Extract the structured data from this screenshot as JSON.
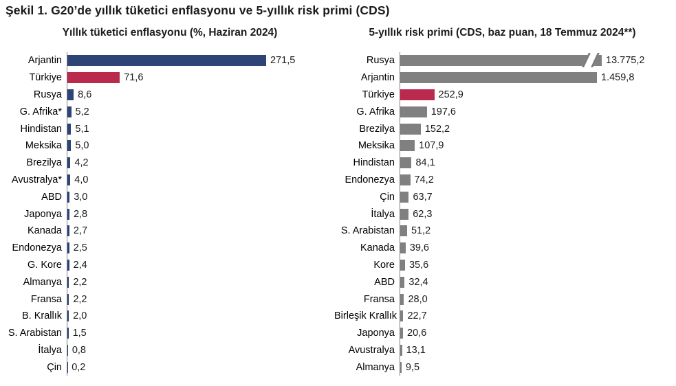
{
  "figure_title": "Şekil 1. G20’de yıllık tüketici enflasyonu ve 5-yıllık risk primi (CDS)",
  "colors": {
    "bar_blue": "#2e4476",
    "bar_red": "#b92a4c",
    "bar_gray": "#808080",
    "axis_gray": "#7f7f7f",
    "title_text": "#1a1a1a"
  },
  "chart_data": [
    {
      "type": "bar",
      "orientation": "horizontal",
      "title": "Yıllık tüketici enflasyonu (%, Haziran 2024)",
      "xlabel": "",
      "ylabel": "",
      "grid": false,
      "legend": false,
      "xlim": [
        0,
        280
      ],
      "categories": [
        "Arjantin",
        "Türkiye",
        "Rusya",
        "G. Afrika*",
        "Hindistan",
        "Meksika",
        "Brezilya",
        "Avustralya*",
        "ABD",
        "Japonya",
        "Kanada",
        "Endonezya",
        "G. Kore",
        "Almanya",
        "Fransa",
        "B. Krallık",
        "S. Arabistan",
        "İtalya",
        "Çin"
      ],
      "values": [
        271.5,
        71.6,
        8.6,
        5.2,
        5.1,
        5.0,
        4.2,
        4.0,
        3.0,
        2.8,
        2.7,
        2.5,
        2.4,
        2.2,
        2.2,
        2.0,
        1.5,
        0.8,
        0.2
      ],
      "value_labels": [
        "271,5",
        "71,6",
        "8,6",
        "5,2",
        "5,1",
        "5,0",
        "4,2",
        "4,0",
        "3,0",
        "2,8",
        "2,7",
        "2,5",
        "2,4",
        "2,2",
        "2,2",
        "2,0",
        "1,5",
        "0,8",
        "0,2"
      ],
      "default_color": "#2e4476",
      "highlight": {
        "category": "Türkiye",
        "color": "#b92a4c"
      }
    },
    {
      "type": "bar",
      "orientation": "horizontal",
      "title": "5-yıllık risk primi (CDS, baz puan, 18 Temmuz 2024**)",
      "xlabel": "",
      "ylabel": "",
      "grid": false,
      "legend": false,
      "xlim": [
        0,
        1500
      ],
      "categories": [
        "Rusya",
        "Arjantin",
        "Türkiye",
        "G. Afrika",
        "Brezilya",
        "Meksika",
        "Hindistan",
        "Endonezya",
        "Çin",
        "İtalya",
        "S. Arabistan",
        "Kanada",
        "Kore",
        "ABD",
        "Fransa",
        "Birleşik Krallık",
        "Japonya",
        "Avustralya",
        "Almanya"
      ],
      "values": [
        13775.2,
        1459.8,
        252.9,
        197.6,
        152.2,
        107.9,
        84.1,
        74.2,
        63.7,
        62.3,
        51.2,
        39.6,
        35.6,
        32.4,
        28.0,
        22.7,
        20.6,
        13.1,
        9.5
      ],
      "value_labels": [
        "13.775,2",
        "1.459,8",
        "252,9",
        "197,6",
        "152,2",
        "107,9",
        "84,1",
        "74,2",
        "63,7",
        "62,3",
        "51,2",
        "39,6",
        "35,6",
        "32,4",
        "28,0",
        "22,7",
        "20,6",
        "13,1",
        "9,5"
      ],
      "default_color": "#808080",
      "highlight": {
        "category": "Türkiye",
        "color": "#b92a4c"
      },
      "axis_break": {
        "category": "Rusya",
        "note": "bar truncated with // break marks"
      }
    }
  ]
}
